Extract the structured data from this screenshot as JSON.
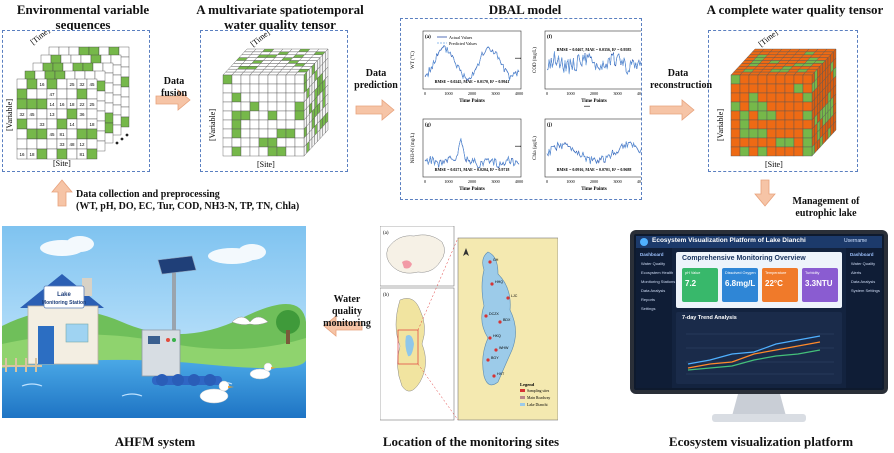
{
  "titles": {
    "env": "Environmental variable sequences",
    "tensor": "A multivariate spatiotemporal water quality tensor",
    "dbal": "DBAL model",
    "complete": "A complete water quality tensor",
    "ahfm": "AHFM system",
    "location": "Location of the monitoring sites",
    "platform": "Ecosystem visualization platform"
  },
  "arrows": {
    "fusion": "Data fusion",
    "prediction": "Data prediction",
    "reconstruction": "Data reconstruction",
    "collection": "Data collection and preprocessing",
    "collection_vars": "(WT, pH, DO, EC, Tur, COD, NH3-N, TP, TN, Chla)",
    "management": "Management of eutrophic lake",
    "monitoring": "Water quality monitoring"
  },
  "axes": {
    "time": "[Time]",
    "variable": "[Variable]",
    "site": "[Site]"
  },
  "dbal_panels": [
    {
      "tag": "(a)",
      "ylabel": "WT (°C)",
      "legend": [
        "Actual Values",
        "Predicted Values"
      ],
      "metrics": "RMSE = 0.0245, MAE = 0.0170, R² = 0.9941",
      "xlabel": "Time Points"
    },
    {
      "tag": "(f)",
      "ylabel": "COD (mg/L)",
      "metrics": "RMSE = 0.0467, MAE = 0.0356, R² = 0.9585",
      "xlabel": "Time Points"
    },
    {
      "tag": "(g)",
      "ylabel": "NH3-N (mg/L)",
      "metrics": "RMSE = 0.0271, MAE = 0.0204, R² = 0.9718",
      "xlabel": "Time Points"
    },
    {
      "tag": "(j)",
      "ylabel": "Chla (μg/L)",
      "metrics": "RMSE = 0.0916, MAE = 0.0701, R² = 0.9688",
      "xlabel": "Time Points"
    }
  ],
  "xticks": [
    "0",
    "1000",
    "2000",
    "3000",
    "4000"
  ],
  "ellipsis": "...",
  "station": {
    "sign_line1": "Lake",
    "sign_line2": "Monitoring Station"
  },
  "map": {
    "tag_a": "(a)",
    "tag_b": "(b)",
    "legend_title": "Legend",
    "legend_items": [
      "Sampling sites",
      "Main Roadway",
      "Lake Dianchi"
    ],
    "sites": [
      "GH",
      "HHQ",
      "LJC",
      "DCZX",
      "BDX",
      "HKQ",
      "WHW",
      "BGY",
      "HXT"
    ]
  },
  "platform": {
    "header": "Ecosystem Visualization Platform of Lake Dianchi",
    "user": "Username",
    "overview_title": "Comprehensive Monitoring Overview",
    "left_menu_title": "Dashboard",
    "left_menu": [
      "Water Quality",
      "Ecosystem Health",
      "Monitoring Stations",
      "Data Analysis",
      "Reports",
      "Settings"
    ],
    "cards": [
      {
        "label": "pH Value",
        "value": "7.2",
        "color": "#38b86b"
      },
      {
        "label": "Dissolved Oxygen",
        "value": "6.8mg/L",
        "color": "#2f86d6"
      },
      {
        "label": "Temperature",
        "value": "22°C",
        "color": "#f07a2a"
      },
      {
        "label": "Turbidity",
        "value": "3.3NTU",
        "color": "#8a5cd1"
      }
    ],
    "trend_title": "7-day Trend Analysis",
    "right_menu_title": "Dashboard",
    "right_menu": [
      "Water Quality",
      "Alerts",
      "Data Analysis",
      "System Settings"
    ]
  },
  "colors": {
    "green": "#76b84a",
    "orange": "#ee6a14",
    "blue_line": "#2a4fa8",
    "pred_line": "#6fa9e6"
  },
  "matrix_values": [
    "12",
    "14",
    "16",
    "18",
    "22",
    "25",
    "32",
    "45",
    "81",
    "13",
    "67",
    "47",
    "36",
    "57",
    "92",
    "11",
    "33",
    "48"
  ]
}
